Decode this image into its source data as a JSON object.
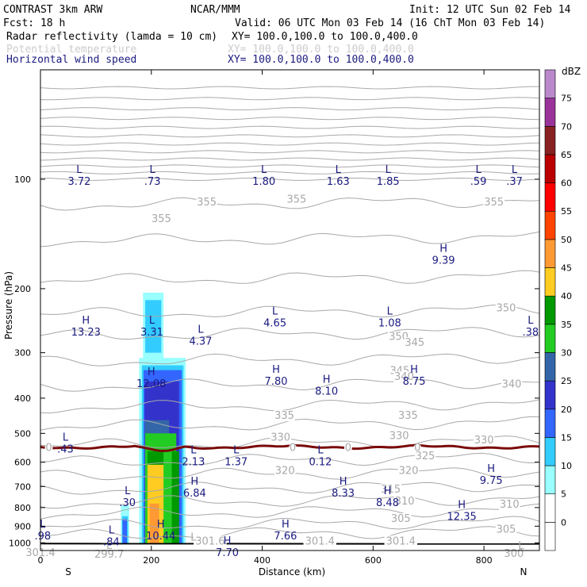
{
  "header": {
    "title_left": "CONTRAST  3km ARW",
    "center": "NCAR/MMM",
    "init": "Init: 12 UTC Sun 02 Feb 14",
    "fcst": "Fcst:    18 h",
    "valid": "Valid: 06 UTC Mon 03 Feb 14 (16 ChT Mon 03 Feb 14)",
    "field1_name": "Radar reflectivity (lamda = 10 cm)",
    "field1_xy": "XY= 100.0,100.0 to 100.0,400.0",
    "field2_name": "Potential temperature",
    "field2_xy": "XY= 100.0,100.0 to 100.0,400.0",
    "field3_name": "Horizontal wind speed",
    "field3_xy": "XY= 100.0,100.0 to 100.0,400.0"
  },
  "colors": {
    "wind_text": "#1a1a80",
    "theta_line": "#a8a8a8",
    "freezing_line": "#7a0a0a",
    "surface_line": "#000000"
  },
  "chart_data": {
    "type": "cross-section",
    "xlabel": "Distance (km)",
    "ylabel": "Pressure (hPa)",
    "xlim": [
      0,
      900
    ],
    "ylim": [
      1050,
      50
    ],
    "y_scale": "log",
    "x_ticks": [
      0,
      200,
      400,
      600,
      800
    ],
    "y_ticks": [
      100,
      200,
      300,
      400,
      500,
      600,
      700,
      800,
      900,
      1000
    ],
    "x_end_labels": {
      "left": "S",
      "right": "N"
    },
    "colorbar": {
      "unit": "dBZ",
      "levels": [
        0,
        5,
        10,
        15,
        20,
        25,
        30,
        35,
        40,
        45,
        50,
        55,
        60,
        65,
        70,
        75
      ],
      "colors": [
        "#ffffff",
        "#99ffff",
        "#33ccff",
        "#3366ff",
        "#3333cc",
        "#3366a8",
        "#22cc22",
        "#009900",
        "#ffcc22",
        "#ff9933",
        "#ff4400",
        "#ff0000",
        "#bb0000",
        "#882222",
        "#993399",
        "#bb88cc"
      ]
    },
    "theta_contour_labels": [
      {
        "x": 300,
        "p": 115,
        "t": "355"
      },
      {
        "x": 462,
        "p": 113,
        "t": "355"
      },
      {
        "x": 818,
        "p": 115,
        "t": "355"
      },
      {
        "x": 218,
        "p": 128,
        "t": "355"
      },
      {
        "x": 840,
        "p": 225,
        "t": "350"
      },
      {
        "x": 646,
        "p": 270,
        "t": "350"
      },
      {
        "x": 675,
        "p": 280,
        "t": "345"
      },
      {
        "x": 648,
        "p": 335,
        "t": "345"
      },
      {
        "x": 656,
        "p": 348,
        "t": "340"
      },
      {
        "x": 850,
        "p": 365,
        "t": "340"
      },
      {
        "x": 440,
        "p": 445,
        "t": "335"
      },
      {
        "x": 663,
        "p": 445,
        "t": "335"
      },
      {
        "x": 433,
        "p": 510,
        "t": "330"
      },
      {
        "x": 647,
        "p": 505,
        "t": "330"
      },
      {
        "x": 800,
        "p": 520,
        "t": "330"
      },
      {
        "x": 694,
        "p": 575,
        "t": "325"
      },
      {
        "x": 441,
        "p": 630,
        "t": "320"
      },
      {
        "x": 664,
        "p": 630,
        "t": "320"
      },
      {
        "x": 632,
        "p": 710,
        "t": "315"
      },
      {
        "x": 657,
        "p": 765,
        "t": "310"
      },
      {
        "x": 846,
        "p": 780,
        "t": "310"
      },
      {
        "x": 650,
        "p": 855,
        "t": "305"
      },
      {
        "x": 840,
        "p": 915,
        "t": "305"
      },
      {
        "x": 306,
        "p": 985,
        "t": "301.6"
      },
      {
        "x": 504,
        "p": 985,
        "t": "301.4"
      },
      {
        "x": 650,
        "p": 985,
        "t": "301.4"
      },
      {
        "x": 0,
        "p": 1060,
        "t": "301.4"
      },
      {
        "x": 124,
        "p": 1070,
        "t": "299.7"
      },
      {
        "x": 854,
        "p": 1065,
        "t": "300"
      }
    ],
    "theta_extrema_labels": [
      {
        "x": 124,
        "p": 1040,
        "t": "L"
      },
      {
        "x": 276,
        "p": 985,
        "t": "L"
      },
      {
        "x": 867,
        "p": 1040,
        "t": "L"
      }
    ],
    "freezing_level": {
      "label": "0",
      "label_x": [
        15,
        455,
        555,
        680
      ]
    },
    "wind_extrema": [
      {
        "type": "L",
        "value": "3.72",
        "x": 70,
        "p": 100
      },
      {
        "type": "L",
        "value": ".73",
        "x": 202,
        "p": 100
      },
      {
        "type": "L",
        "value": "1.80",
        "x": 403,
        "p": 100
      },
      {
        "type": "L",
        "value": "1.63",
        "x": 537,
        "p": 100
      },
      {
        "type": "L",
        "value": "1.85",
        "x": 627,
        "p": 100
      },
      {
        "type": "L",
        "value": ".59",
        "x": 790,
        "p": 100
      },
      {
        "type": "L",
        "value": ".37",
        "x": 855,
        "p": 100
      },
      {
        "type": "H",
        "value": "9.39",
        "x": 727,
        "p": 165
      },
      {
        "type": "H",
        "value": "13.23",
        "x": 82,
        "p": 260
      },
      {
        "type": "L",
        "value": "3.31",
        "x": 201,
        "p": 260
      },
      {
        "type": "L",
        "value": "4.37",
        "x": 289,
        "p": 275
      },
      {
        "type": "L",
        "value": "4.65",
        "x": 423,
        "p": 245
      },
      {
        "type": "L",
        "value": "1.08",
        "x": 630,
        "p": 245
      },
      {
        "type": "L",
        "value": ".38",
        "x": 884,
        "p": 260
      },
      {
        "type": "H",
        "value": "12.08",
        "x": 200,
        "p": 360
      },
      {
        "type": "H",
        "value": "7.80",
        "x": 425,
        "p": 355
      },
      {
        "type": "H",
        "value": "8.10",
        "x": 516,
        "p": 378
      },
      {
        "type": "H",
        "value": "8.75",
        "x": 674,
        "p": 355
      },
      {
        "type": "L",
        "value": ".43",
        "x": 45,
        "p": 545
      },
      {
        "type": "L",
        "value": "2.13",
        "x": 276,
        "p": 590
      },
      {
        "type": "L",
        "value": "1.37",
        "x": 353,
        "p": 590
      },
      {
        "type": "L",
        "value": "0.12",
        "x": 505,
        "p": 590
      },
      {
        "type": "H",
        "value": "9.75",
        "x": 813,
        "p": 665
      },
      {
        "type": "H",
        "value": "6.84",
        "x": 278,
        "p": 720
      },
      {
        "type": "H",
        "value": "8.33",
        "x": 546,
        "p": 720
      },
      {
        "type": "L",
        "value": ".30",
        "x": 157,
        "p": 765
      },
      {
        "type": "H",
        "value": "8.48",
        "x": 626,
        "p": 765
      },
      {
        "type": "H",
        "value": "12.35",
        "x": 760,
        "p": 835
      },
      {
        "type": "L",
        "value": ".98",
        "x": 4,
        "p": 945
      },
      {
        "type": "L",
        "value": ".84",
        "x": 128,
        "p": 980
      },
      {
        "type": "H",
        "value": "10.44",
        "x": 217,
        "p": 945
      },
      {
        "type": "H",
        "value": "7.66",
        "x": 442,
        "p": 945
      },
      {
        "type": "H",
        "value": "7.70",
        "x": 337,
        "p": 1050
      }
    ]
  }
}
